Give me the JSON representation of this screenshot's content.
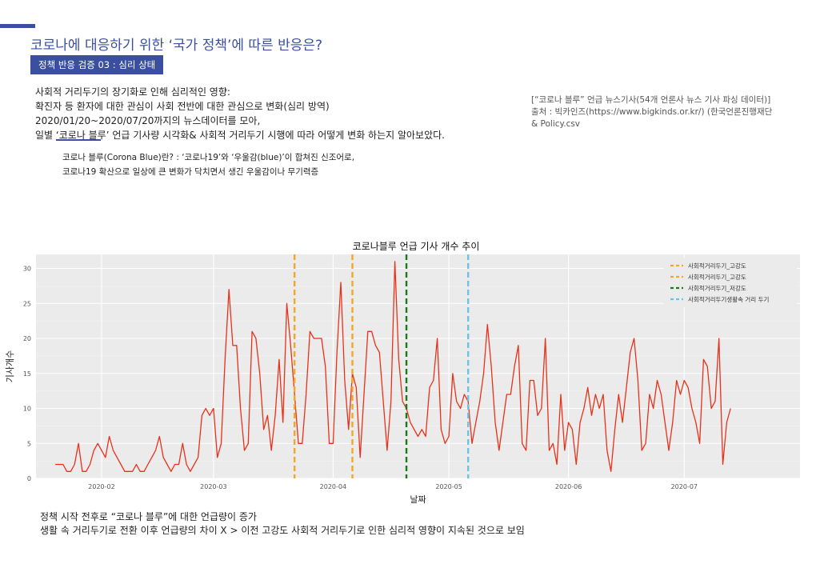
{
  "header": {
    "title": "코로나에 대응하기 위한 ‘국가 정책’에 따른 반응은?",
    "badge": "정책 반응 검증 03 :  심리 상태"
  },
  "description": {
    "lines": [
      "사회적 거리두기의 장기화로 인해 심리적인 영향:",
      "확진자 등 환자에 대한 관심이 사회 전반에 대한 관심으로 변화(심리 방역)",
      "2020/01/20~2020/07/20까지의 뉴스데이터를 모아,",
      "일별 ‘코로나 블루’ 언급 기사량 시각화& 사회적 거리두기 시행에 따라 어떻게 변화 하는지 알아보았다."
    ],
    "definition": [
      "코로나 블루(Corona Blue)란? : ‘코로나19’와 ‘우울감(blue)’이 합쳐진 신조어로,",
      "코로나19 확산으로 일상에 큰 변화가 닥치면서 생긴 우울감이나 무기력증"
    ]
  },
  "source": {
    "lines": [
      "[“코로나 블루” 언급 뉴스기사(54개 언론사 뉴스 기사 파싱 데이터)]",
      "출처 : 빅카인즈(https://www.bigkinds.or.kr/) (한국언론진행재단",
      "& Policy.csv"
    ]
  },
  "notes": {
    "lines": [
      "정책 시작 전후로 “코로나 블루”에 대한 언급량이 증가",
      "생활 속 거리두기로 전환 이후 언급량의 차이 X > 이전 고강도 사회적 거리두기로 인한 심리적 영향이 지속된 것으로 보임"
    ]
  },
  "colors": {
    "accent": "#3a4fa0",
    "line": "#e8311a",
    "orange": "#f5a623",
    "green": "#1a7a1a",
    "skyblue": "#6cc3e6",
    "panel": "#ebebeb"
  },
  "chart_data": {
    "type": "line",
    "title": "코로나블루 언급 기사 개수 추이",
    "xlabel": "날짜",
    "ylabel": "기사개수",
    "x_start": "2020-01-20",
    "xlim": [
      "2020-01-15",
      "2020-07-31"
    ],
    "ylim": [
      0,
      32
    ],
    "yticks": [
      0,
      5,
      10,
      15,
      20,
      25,
      30
    ],
    "xticks": [
      {
        "label": "2020-02",
        "date": "2020-02-01"
      },
      {
        "label": "2020-03",
        "date": "2020-03-01"
      },
      {
        "label": "2020-04",
        "date": "2020-04-01"
      },
      {
        "label": "2020-05",
        "date": "2020-05-01"
      },
      {
        "label": "2020-06",
        "date": "2020-06-01"
      },
      {
        "label": "2020-07",
        "date": "2020-07-01"
      }
    ],
    "grid": true,
    "legend_position": "top-right",
    "vlines": [
      {
        "name": "사회적거리두기_고강도",
        "date": "2020-03-22",
        "color": "#f5a623"
      },
      {
        "name": "사회적거리두기_고강도",
        "date": "2020-04-06",
        "color": "#f5a623"
      },
      {
        "name": "사회적거리두기_저강도",
        "date": "2020-04-20",
        "color": "#1a7a1a"
      },
      {
        "name": "사회적거리두기생활속 거리 두기",
        "date": "2020-05-06",
        "color": "#6cc3e6"
      }
    ],
    "series": [
      {
        "name": "",
        "values": [
          2,
          2,
          2,
          1,
          1,
          2,
          5,
          1,
          1,
          2,
          4,
          5,
          4,
          3,
          6,
          4,
          3,
          2,
          1,
          1,
          1,
          2,
          1,
          1,
          2,
          3,
          4,
          6,
          3,
          2,
          1,
          2,
          2,
          5,
          2,
          1,
          2,
          3,
          9,
          10,
          9,
          10,
          3,
          5,
          17,
          27,
          19,
          19,
          10,
          4,
          5,
          21,
          20,
          15,
          7,
          9,
          4,
          9,
          17,
          8,
          25,
          19,
          12,
          5,
          5,
          12,
          21,
          20,
          20,
          20,
          16,
          5,
          5,
          18,
          28,
          14,
          7,
          15,
          13,
          3,
          12,
          21,
          21,
          19,
          18,
          11,
          4,
          11,
          31,
          17,
          11,
          10,
          8,
          7,
          6,
          7,
          6,
          13,
          14,
          20,
          7,
          5,
          6,
          15,
          11,
          10,
          12,
          11,
          5,
          8,
          11,
          15,
          22,
          16,
          8,
          4,
          8,
          12,
          12,
          16,
          19,
          5,
          4,
          14,
          14,
          9,
          10,
          20,
          4,
          5,
          2,
          12,
          4,
          8,
          7,
          2,
          8,
          10,
          13,
          9,
          12,
          10,
          12,
          4,
          1,
          7,
          12,
          8,
          13,
          18,
          20,
          14,
          4,
          5,
          12,
          10,
          14,
          12,
          8,
          4,
          8,
          14,
          12,
          14,
          13,
          10,
          8,
          5,
          17,
          16,
          10,
          11,
          20,
          2,
          8,
          10
        ]
      }
    ]
  }
}
